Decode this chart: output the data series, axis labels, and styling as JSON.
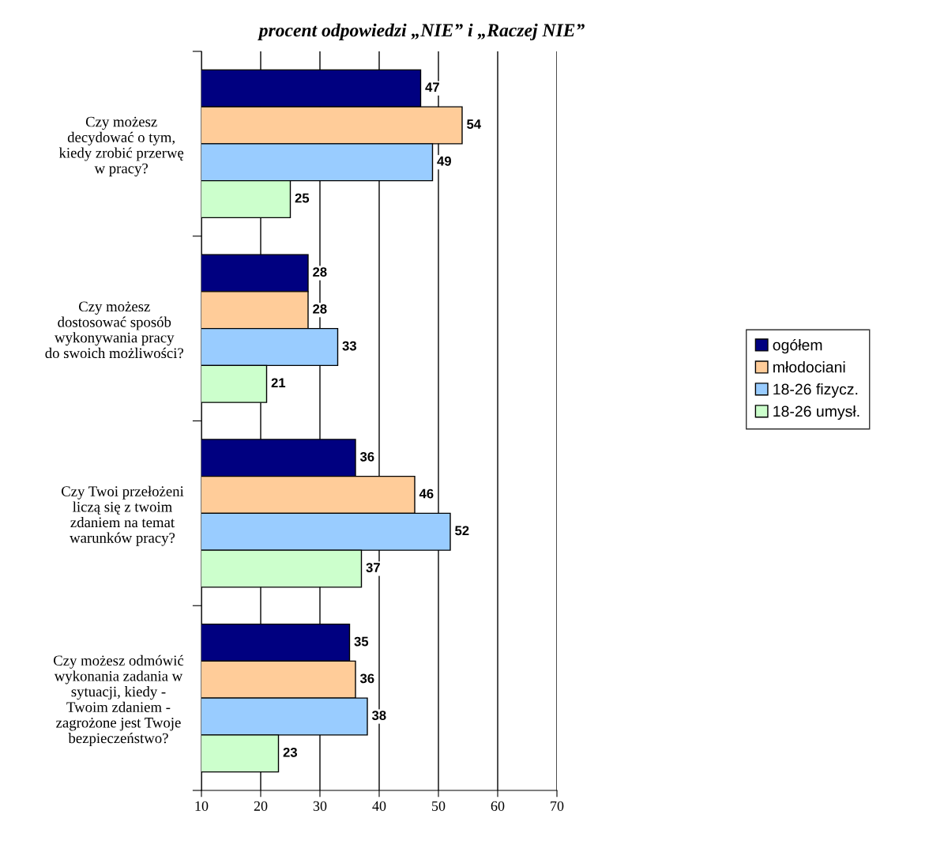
{
  "chart_data": {
    "type": "bar",
    "orientation": "horizontal",
    "title": "procent odpowiedzi „NIE” i „Raczej NIE”",
    "categories": [
      "Czy możesz\ndecydować o tym,\nkiedy zrobić przerwę\nw pracy?",
      "Czy możesz\ndostosować sposób\nwykonywania pracy\ndo swoich możliwości?",
      "Czy Twoi przełożeni\nliczą się z twoim\nzdaniem na temat\nwarunków pracy?",
      "Czy możesz odmówić\nwykonania zadania w\nsytuacji, kiedy -\nTwoim zdaniem -\nzagrożone jest Twoje\nbezpieczeństwo?"
    ],
    "series": [
      {
        "name": "ogółem",
        "color": "#000080",
        "values": [
          47,
          28,
          36,
          35
        ]
      },
      {
        "name": "młodociani",
        "color": "#ffcc99",
        "values": [
          54,
          28,
          46,
          36
        ]
      },
      {
        "name": "18-26 fizycz.",
        "color": "#99ccff",
        "values": [
          49,
          33,
          52,
          38
        ]
      },
      {
        "name": "18-26 umysł.",
        "color": "#ccffcc",
        "values": [
          25,
          21,
          37,
          23
        ]
      }
    ],
    "xlim": [
      10,
      70
    ],
    "xticks": [
      10,
      20,
      30,
      40,
      50,
      60,
      70
    ],
    "grid": "x",
    "legend": "right",
    "data_labels": true
  }
}
